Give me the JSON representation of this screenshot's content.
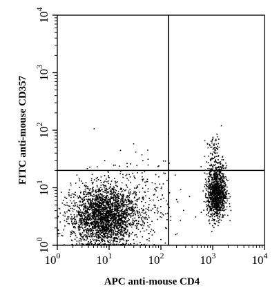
{
  "chart_data": {
    "type": "scatter",
    "title": "",
    "xlabel": "APC anti-mouse CD4",
    "ylabel": "FITC anti-mouse CD357",
    "x_scale": "log",
    "y_scale": "log",
    "xlim": [
      1,
      10000
    ],
    "ylim": [
      1,
      10000
    ],
    "x_ticks": [
      {
        "base": "10",
        "exp": "0"
      },
      {
        "base": "10",
        "exp": "1"
      },
      {
        "base": "10",
        "exp": "2"
      },
      {
        "base": "10",
        "exp": "3"
      },
      {
        "base": "10",
        "exp": "4"
      }
    ],
    "y_ticks": [
      {
        "base": "10",
        "exp": "0"
      },
      {
        "base": "10",
        "exp": "1"
      },
      {
        "base": "10",
        "exp": "2"
      },
      {
        "base": "10",
        "exp": "3"
      },
      {
        "base": "10",
        "exp": "4"
      }
    ],
    "quadrant_gates": {
      "x": 140,
      "y": 20
    },
    "grid": false,
    "point_color": "#000000",
    "populations": [
      {
        "center_x": 8,
        "center_y": 3.2,
        "spread_log_x": 0.32,
        "spread_log_y": 0.26,
        "count": 2600
      },
      {
        "center_x": 1200,
        "center_y": 8,
        "spread_log_x": 0.09,
        "spread_log_y": 0.22,
        "count": 1100
      },
      {
        "center_x": 1100,
        "center_y": 30,
        "spread_log_x": 0.08,
        "spread_log_y": 0.22,
        "count": 130
      },
      {
        "center_x": 40,
        "center_y": 6,
        "spread_log_x": 0.45,
        "spread_log_y": 0.35,
        "count": 220
      }
    ]
  }
}
